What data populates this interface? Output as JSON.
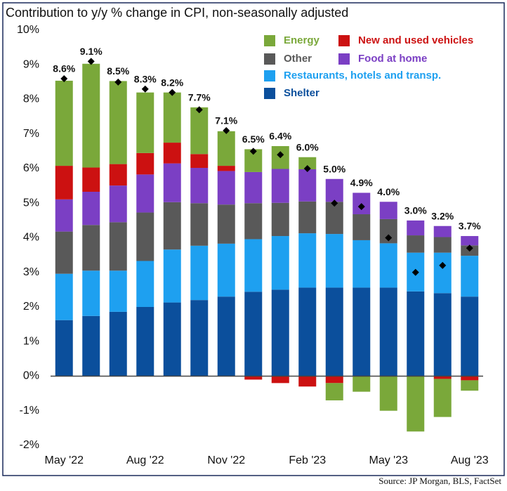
{
  "chart_data": {
    "type": "stacked_bar",
    "title": "Contribution to y/y % change in CPI, non-seasonally adjusted",
    "source": "Source: JP Morgan, BLS, FactSet",
    "categories": [
      "May '22",
      null,
      null,
      "Aug '22",
      null,
      null,
      "Nov '22",
      null,
      null,
      "Feb '23",
      null,
      null,
      "May '23",
      null,
      null,
      "Aug '23"
    ],
    "series": [
      {
        "name": "Shelter",
        "color": "#0b4f9c",
        "values": [
          1.62,
          1.74,
          1.86,
          2.0,
          2.13,
          2.2,
          2.3,
          2.44,
          2.5,
          2.56,
          2.56,
          2.56,
          2.56,
          2.45,
          2.4,
          2.3
        ]
      },
      {
        "name": "Restaurants, hotels and transp.",
        "color": "#1ea0f0",
        "values": [
          1.34,
          1.31,
          1.19,
          1.33,
          1.53,
          1.57,
          1.53,
          1.52,
          1.55,
          1.57,
          1.55,
          1.37,
          1.28,
          1.12,
          1.17,
          1.18
        ]
      },
      {
        "name": "Other",
        "color": "#595959",
        "values": [
          1.22,
          1.32,
          1.4,
          1.4,
          1.37,
          1.23,
          1.13,
          1.04,
          0.96,
          0.92,
          0.93,
          0.75,
          0.7,
          0.5,
          0.45,
          0.3
        ]
      },
      {
        "name": "Food at home",
        "color": "#7b3fc4",
        "values": [
          0.93,
          0.96,
          1.06,
          1.1,
          1.12,
          1.02,
          0.97,
          0.9,
          0.98,
          0.93,
          0.66,
          0.62,
          0.5,
          0.43,
          0.32,
          0.27
        ]
      },
      {
        "name": "New and used vehicles",
        "color": "#cc1111",
        "values": [
          0.97,
          0.7,
          0.62,
          0.62,
          0.6,
          0.4,
          0.15,
          -0.1,
          -0.2,
          -0.3,
          -0.2,
          0,
          0,
          0,
          -0.08,
          -0.12
        ]
      },
      {
        "name": "Energy",
        "color": "#7aa83a",
        "values": [
          2.46,
          3.0,
          2.4,
          1.75,
          1.45,
          1.35,
          1.0,
          0.66,
          0.66,
          0.35,
          -0.5,
          -0.45,
          -1.0,
          -1.6,
          -1.1,
          -0.3
        ]
      }
    ],
    "totals": {
      "values": [
        8.6,
        9.1,
        8.5,
        8.3,
        8.2,
        7.7,
        7.1,
        6.5,
        6.4,
        6.0,
        5.0,
        4.9,
        4.0,
        3.0,
        3.2,
        3.7
      ],
      "value_labels": [
        "8.6%",
        "9.1%",
        "8.5%",
        "8.3%",
        "8.2%",
        "7.7%",
        "7.1%",
        "6.5%",
        "6.4%",
        "6.0%",
        "5.0%",
        "4.9%",
        "4.0%",
        "3.0%",
        "3.2%",
        "3.7%"
      ]
    },
    "ylim": [
      -2,
      10
    ],
    "yticks": [
      {
        "value": -2,
        "label": "-2%"
      },
      {
        "value": -1,
        "label": "-1%"
      },
      {
        "value": 0,
        "label": "0%"
      },
      {
        "value": 1,
        "label": "1%"
      },
      {
        "value": 2,
        "label": "2%"
      },
      {
        "value": 3,
        "label": "3%"
      },
      {
        "value": 4,
        "label": "4%"
      },
      {
        "value": 5,
        "label": "5%"
      },
      {
        "value": 6,
        "label": "6%"
      },
      {
        "value": 7,
        "label": "7%"
      },
      {
        "value": 8,
        "label": "8%"
      },
      {
        "value": 9,
        "label": "9%"
      },
      {
        "value": 10,
        "label": "10%"
      }
    ],
    "legend": "upper right"
  }
}
